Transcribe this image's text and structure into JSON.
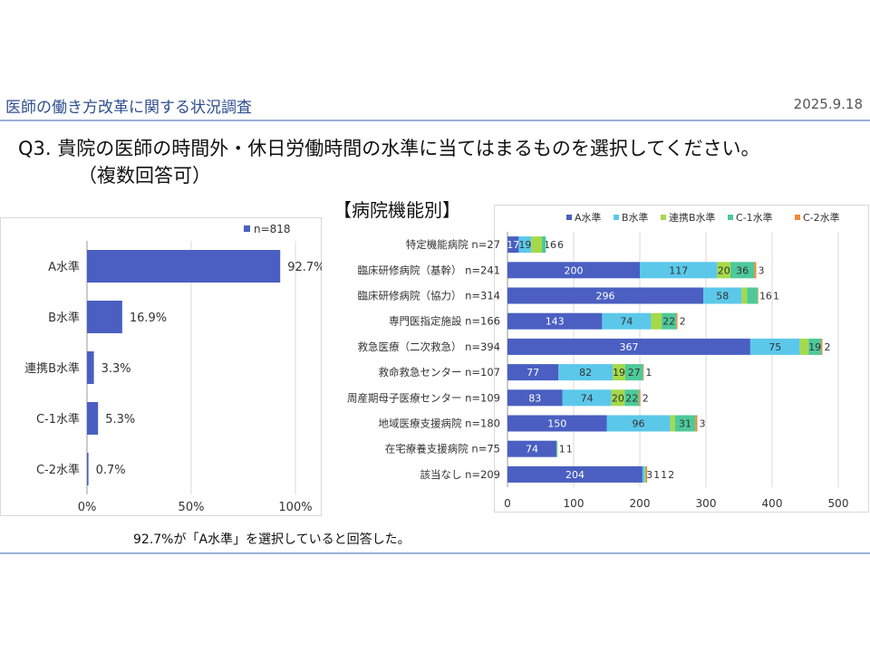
{
  "header": {
    "title": "医師の働き方改革に関する状況調査",
    "date": "2025.9.18"
  },
  "question": {
    "line1": "Q3.  貴院の医師の時間外・休日労働時間の水準に当てはまるものを選択してください。",
    "line2": "（複数回答可）"
  },
  "subtitle": "【病院機能別】",
  "note": "92.7%が「A水準」を選択していると回答した。",
  "colors": {
    "A": "#4a5fc1",
    "B": "#5bc8ea",
    "renkeiB": "#a6d94a",
    "C1": "#4dc99a",
    "C2": "#f08a3a"
  },
  "chart_data": [
    {
      "type": "bar",
      "orientation": "horizontal",
      "legend": "n=818",
      "categories": [
        "A水準",
        "B水準",
        "連携B水準",
        "C-1水準",
        "C-2水準"
      ],
      "values": [
        92.7,
        16.9,
        3.3,
        5.3,
        0.7
      ],
      "value_labels": [
        "92.7%",
        "16.9%",
        "3.3%",
        "5.3%",
        "0.7%"
      ],
      "xlim": [
        0,
        100
      ],
      "xticks": [
        "0%",
        "50%",
        "100%"
      ],
      "legend_position": "top-right"
    },
    {
      "type": "bar",
      "orientation": "horizontal",
      "stacked": true,
      "categories": [
        "特定機能病院  n=27",
        "臨床研修病院（基幹） n=241",
        "臨床研修病院（協力） n=314",
        "専門医指定施設  n=166",
        "救急医療（二次救急） n=394",
        "救命救急センター  n=107",
        "周産期母子医療センター  n=109",
        "地域医療支援病院  n=180",
        "在宅療養支援病院  n=75",
        "該当なし  n=209"
      ],
      "series": [
        {
          "name": "A水準",
          "values": [
            17,
            200,
            296,
            143,
            367,
            77,
            83,
            150,
            74,
            204
          ]
        },
        {
          "name": "B水準",
          "values": [
            19,
            117,
            58,
            74,
            75,
            82,
            74,
            96,
            1,
            3
          ]
        },
        {
          "name": "連携B水準",
          "values": [
            16,
            20,
            8,
            16,
            13,
            19,
            20,
            7,
            1,
            1
          ]
        },
        {
          "name": "C-1水準",
          "values": [
            6,
            36,
            16,
            22,
            19,
            27,
            22,
            31,
            0,
            1
          ]
        },
        {
          "name": "C-2水準",
          "values": [
            0,
            3,
            1,
            2,
            2,
            1,
            2,
            3,
            0,
            2
          ]
        }
      ],
      "xlim": [
        0,
        500
      ],
      "xticks": [
        "0",
        "100",
        "200",
        "300",
        "400",
        "500"
      ],
      "legend_position": "top"
    }
  ]
}
